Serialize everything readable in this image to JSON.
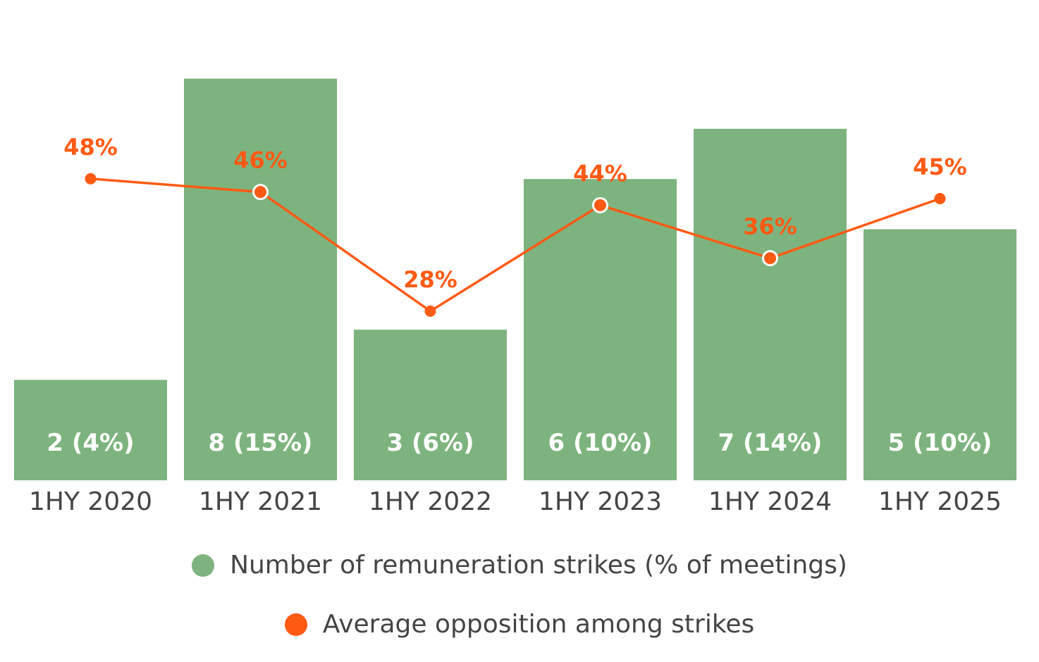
{
  "chart_data": {
    "type": "bar",
    "categories": [
      "1HY 2020",
      "1HY 2021",
      "1HY 2022",
      "1HY 2023",
      "1HY 2024",
      "1HY 2025"
    ],
    "series": [
      {
        "name": "Number of remuneration strikes (% of meetings)",
        "kind": "bar",
        "values": [
          2,
          8,
          3,
          6,
          7,
          5
        ],
        "labels": [
          "2 (4%)",
          "8 (15%)",
          "3 (6%)",
          "6 (10%)",
          "7 (14%)",
          "5 (10%)"
        ],
        "color": "#7db37e"
      },
      {
        "name": "Average opposition among strikes",
        "kind": "line",
        "values": [
          48,
          46,
          28,
          44,
          36,
          45
        ],
        "labels": [
          "48%",
          "46%",
          "28%",
          "44%",
          "36%",
          "45%"
        ],
        "color": "#ff5a14"
      }
    ],
    "title": "",
    "xlabel": "",
    "ylabel": "",
    "legend": "bottom",
    "grid": false
  },
  "legend": {
    "bar_label": "Number of remuneration strikes (% of meetings)",
    "line_label": "Average opposition among strikes"
  }
}
